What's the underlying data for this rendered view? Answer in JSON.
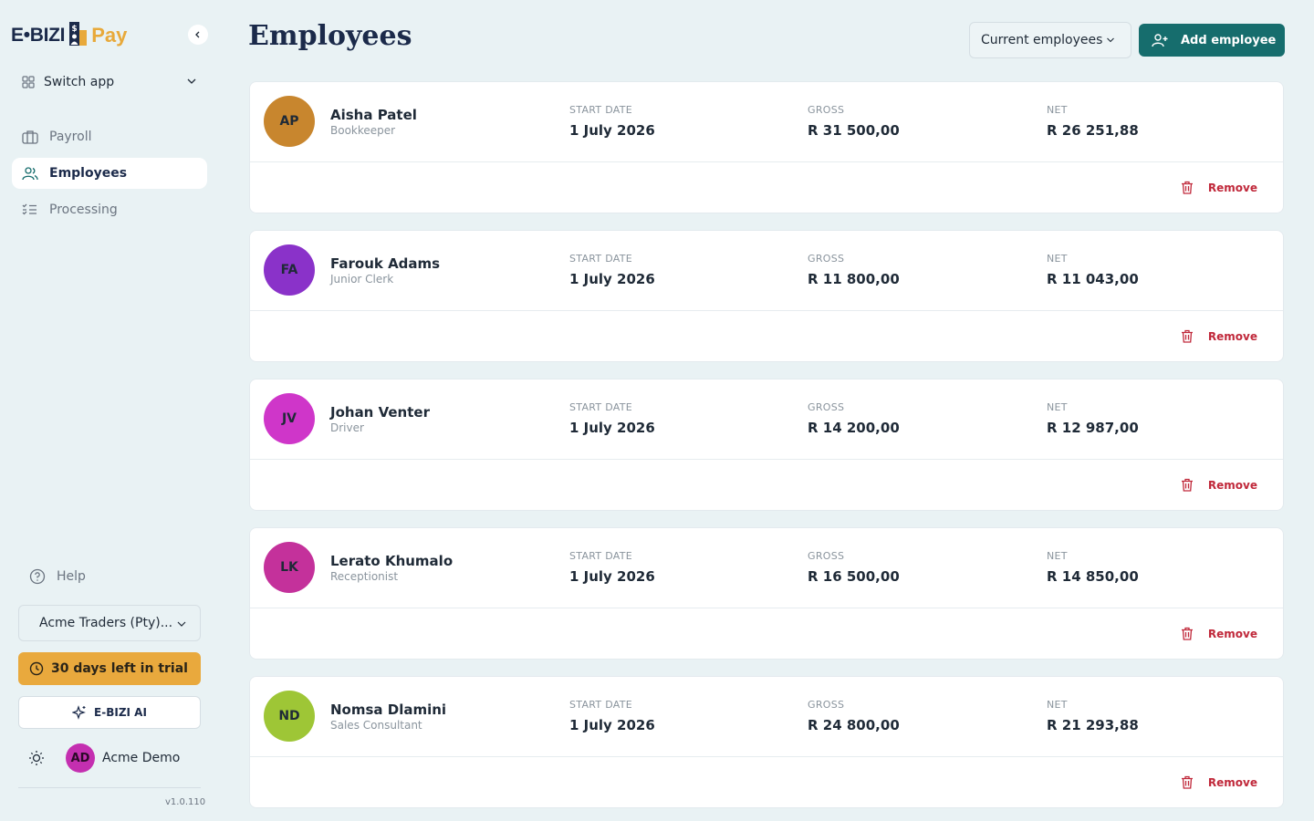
{
  "brand": {
    "part1": "E•BIZI",
    "part2": "Pay"
  },
  "sidebar": {
    "switch_app": "Switch app",
    "items": [
      {
        "label": "Payroll",
        "icon": "briefcase-icon"
      },
      {
        "label": "Employees",
        "icon": "users-icon",
        "active": true
      },
      {
        "label": "Processing",
        "icon": "checklist-icon"
      }
    ],
    "help": "Help",
    "company": "Acme Traders (Pty)...",
    "trial": "30 days left in trial",
    "ai": "E-BIZI AI",
    "user": {
      "initials": "AD",
      "name": "Acme Demo"
    },
    "version": "v1.0.110"
  },
  "header": {
    "title": "Employees",
    "filter": "Current employees",
    "add_label": "Add employee"
  },
  "labels": {
    "start": "START DATE",
    "gross": "GROSS",
    "net": "NET",
    "remove": "Remove"
  },
  "employees": [
    {
      "initials": "AP",
      "name": "Aisha Patel",
      "role": "Bookkeeper",
      "start": "1 July 2026",
      "gross": "R 31 500,00",
      "net": "R 26 251,88",
      "color": "#c8862e"
    },
    {
      "initials": "FA",
      "name": "Farouk Adams",
      "role": "Junior Clerk",
      "start": "1 July 2026",
      "gross": "R 11 800,00",
      "net": "R 11 043,00",
      "color": "#8a32c9"
    },
    {
      "initials": "JV",
      "name": "Johan Venter",
      "role": "Driver",
      "start": "1 July 2026",
      "gross": "R 14 200,00",
      "net": "R 12 987,00",
      "color": "#cf36c9"
    },
    {
      "initials": "LK",
      "name": "Lerato Khumalo",
      "role": "Receptionist",
      "start": "1 July 2026",
      "gross": "R 16 500,00",
      "net": "R 14 850,00",
      "color": "#c4319b"
    },
    {
      "initials": "ND",
      "name": "Nomsa Dlamini",
      "role": "Sales Consultant",
      "start": "1 July 2026",
      "gross": "R 24 800,00",
      "net": "R 21 293,88",
      "color": "#9ec636"
    }
  ],
  "colors": {
    "accent": "#166d6d",
    "trial": "#e9a93d",
    "danger": "#c0283a",
    "background": "#e9f2f4"
  }
}
